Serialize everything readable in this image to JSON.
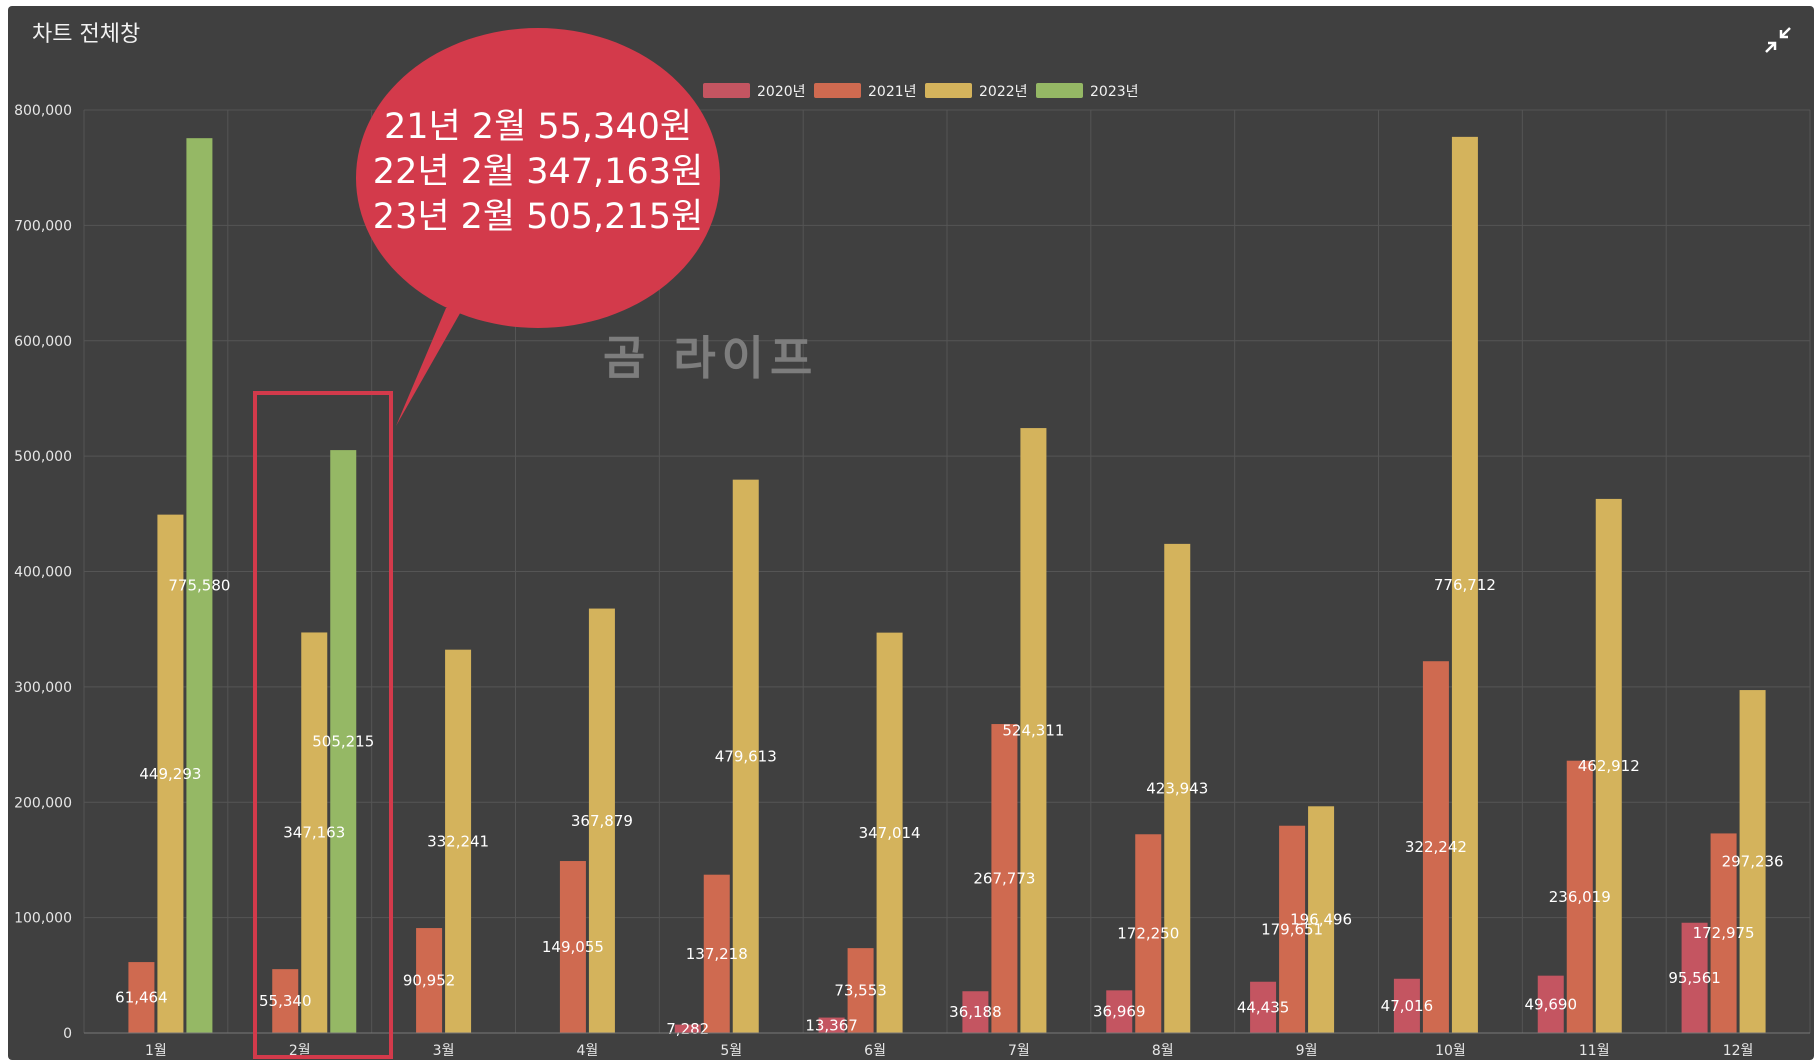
{
  "window": {
    "title": "차트 전체창",
    "collapse_icon": "collapse-arrows-icon"
  },
  "colors": {
    "background": "#404040",
    "grid": "#555555",
    "highlight": "#d33a4b",
    "axis_text": "#e6e6e6"
  },
  "watermark": "곰  라이프",
  "callout": {
    "lines": [
      "21년  2월 55,340원",
      "22년 2월 347,163원",
      "23년 2월 505,215원"
    ],
    "highlight_category": "2월"
  },
  "chart_data": {
    "type": "bar",
    "categories": [
      "1월",
      "2월",
      "3월",
      "4월",
      "5월",
      "6월",
      "7월",
      "8월",
      "9월",
      "10월",
      "11월",
      "12월"
    ],
    "series": [
      {
        "name": "2020년",
        "color": "#c45561",
        "values": [
          null,
          null,
          null,
          null,
          7282,
          13367,
          36188,
          36969,
          44435,
          47016,
          49690,
          95561
        ]
      },
      {
        "name": "2021년",
        "color": "#cf6a50",
        "values": [
          61464,
          55340,
          90952,
          149055,
          137218,
          73553,
          267773,
          172250,
          179651,
          322242,
          236019,
          172975
        ]
      },
      {
        "name": "2022년",
        "color": "#d4b35c",
        "values": [
          449293,
          347163,
          332241,
          367879,
          479613,
          347014,
          524311,
          423943,
          196496,
          776712,
          462912,
          297236
        ]
      },
      {
        "name": "2023년",
        "color": "#95b865",
        "values": [
          775580,
          505215,
          null,
          null,
          null,
          null,
          null,
          null,
          null,
          null,
          null,
          null
        ]
      }
    ],
    "y_ticks": [
      "0",
      "100,000",
      "200,000",
      "300,000",
      "400,000",
      "500,000",
      "600,000",
      "700,000",
      "800,000"
    ],
    "ylim": [
      0,
      800000
    ],
    "grid": true,
    "legend_position": "top-center"
  }
}
